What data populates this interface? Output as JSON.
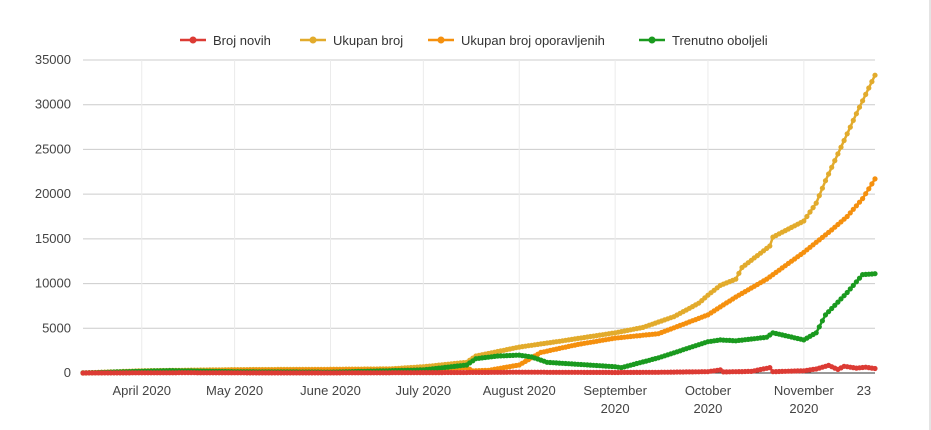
{
  "chart_data": {
    "type": "line",
    "title": "",
    "xlabel": "",
    "ylabel": "",
    "ylim": [
      0,
      35000
    ],
    "y_ticks": [
      "0",
      "5000",
      "10000",
      "15000",
      "20000",
      "25000",
      "30000",
      "35000"
    ],
    "x_range": [
      "2020-03-13",
      "2020-11-24"
    ],
    "x_ticks": [
      {
        "date": "2020-04-01",
        "lines": [
          "April 2020"
        ]
      },
      {
        "date": "2020-05-01",
        "lines": [
          "May 2020"
        ]
      },
      {
        "date": "2020-06-01",
        "lines": [
          "June 2020"
        ]
      },
      {
        "date": "2020-07-01",
        "lines": [
          "July 2020"
        ]
      },
      {
        "date": "2020-08-01",
        "lines": [
          "August 2020"
        ]
      },
      {
        "date": "2020-09-01",
        "lines": [
          "September",
          "2020"
        ]
      },
      {
        "date": "2020-10-01",
        "lines": [
          "October",
          "2020"
        ]
      },
      {
        "date": "2020-11-01",
        "lines": [
          "November",
          "2020"
        ]
      },
      {
        "date": "2020-11-23",
        "lines": [
          "23"
        ]
      }
    ],
    "gridlines": true,
    "legend_position": "top",
    "series": [
      {
        "name": "Broj novih",
        "color": "#dc3b34",
        "points": [
          [
            "2020-03-13",
            5
          ],
          [
            "2020-04-15",
            30
          ],
          [
            "2020-05-15",
            10
          ],
          [
            "2020-06-15",
            20
          ],
          [
            "2020-07-15",
            60
          ],
          [
            "2020-08-01",
            90
          ],
          [
            "2020-08-15",
            80
          ],
          [
            "2020-09-01",
            60
          ],
          [
            "2020-09-15",
            80
          ],
          [
            "2020-10-01",
            150
          ],
          [
            "2020-10-05",
            350
          ],
          [
            "2020-10-06",
            120
          ],
          [
            "2020-10-15",
            180
          ],
          [
            "2020-10-21",
            600
          ],
          [
            "2020-10-22",
            150
          ],
          [
            "2020-11-01",
            250
          ],
          [
            "2020-11-05",
            450
          ],
          [
            "2020-11-09",
            850
          ],
          [
            "2020-11-12",
            400
          ],
          [
            "2020-11-14",
            750
          ],
          [
            "2020-11-18",
            550
          ],
          [
            "2020-11-21",
            650
          ],
          [
            "2020-11-24",
            500
          ]
        ]
      },
      {
        "name": "Ukupan broj",
        "color": "#e2ab2c",
        "points": [
          [
            "2020-03-13",
            10
          ],
          [
            "2020-04-01",
            250
          ],
          [
            "2020-05-01",
            380
          ],
          [
            "2020-06-01",
            420
          ],
          [
            "2020-06-20",
            460
          ],
          [
            "2020-07-01",
            700
          ],
          [
            "2020-07-15",
            1200
          ],
          [
            "2020-07-18",
            1900
          ],
          [
            "2020-08-01",
            2900
          ],
          [
            "2020-08-15",
            3600
          ],
          [
            "2020-09-01",
            4500
          ],
          [
            "2020-09-10",
            5100
          ],
          [
            "2020-09-20",
            6300
          ],
          [
            "2020-09-28",
            7800
          ],
          [
            "2020-10-01",
            8700
          ],
          [
            "2020-10-05",
            9800
          ],
          [
            "2020-10-10",
            10500
          ],
          [
            "2020-10-12",
            11800
          ],
          [
            "2020-10-21",
            14200
          ],
          [
            "2020-10-22",
            15200
          ],
          [
            "2020-11-01",
            17000
          ],
          [
            "2020-11-05",
            19000
          ],
          [
            "2020-11-08",
            21500
          ],
          [
            "2020-11-12",
            24500
          ],
          [
            "2020-11-18",
            29000
          ],
          [
            "2020-11-24",
            33300
          ]
        ]
      },
      {
        "name": "Ukupan broj oporavljenih",
        "color": "#f5900e",
        "points": [
          [
            "2020-03-13",
            0
          ],
          [
            "2020-04-01",
            80
          ],
          [
            "2020-05-01",
            280
          ],
          [
            "2020-06-01",
            340
          ],
          [
            "2020-07-01",
            380
          ],
          [
            "2020-07-15",
            600
          ],
          [
            "2020-07-17",
            250
          ],
          [
            "2020-07-22",
            300
          ],
          [
            "2020-08-01",
            900
          ],
          [
            "2020-08-08",
            2300
          ],
          [
            "2020-08-20",
            3200
          ],
          [
            "2020-09-01",
            3900
          ],
          [
            "2020-09-15",
            4400
          ],
          [
            "2020-10-01",
            6500
          ],
          [
            "2020-10-10",
            8500
          ],
          [
            "2020-10-20",
            10500
          ],
          [
            "2020-11-01",
            13500
          ],
          [
            "2020-11-10",
            16000
          ],
          [
            "2020-11-15",
            17500
          ],
          [
            "2020-11-20",
            19500
          ],
          [
            "2020-11-24",
            21700
          ]
        ]
      },
      {
        "name": "Trenutno oboljeli",
        "color": "#1a9a1f",
        "points": [
          [
            "2020-03-13",
            10
          ],
          [
            "2020-04-01",
            200
          ],
          [
            "2020-04-10",
            270
          ],
          [
            "2020-05-01",
            150
          ],
          [
            "2020-06-01",
            100
          ],
          [
            "2020-07-01",
            350
          ],
          [
            "2020-07-15",
            900
          ],
          [
            "2020-07-18",
            1600
          ],
          [
            "2020-07-25",
            1900
          ],
          [
            "2020-08-01",
            2000
          ],
          [
            "2020-08-05",
            1800
          ],
          [
            "2020-08-10",
            1200
          ],
          [
            "2020-09-01",
            700
          ],
          [
            "2020-09-03",
            600
          ],
          [
            "2020-09-15",
            1700
          ],
          [
            "2020-10-01",
            3500
          ],
          [
            "2020-10-05",
            3700
          ],
          [
            "2020-10-10",
            3600
          ],
          [
            "2020-10-20",
            4000
          ],
          [
            "2020-10-22",
            4500
          ],
          [
            "2020-11-01",
            3700
          ],
          [
            "2020-11-05",
            4500
          ],
          [
            "2020-11-08",
            6500
          ],
          [
            "2020-11-15",
            9000
          ],
          [
            "2020-11-20",
            11000
          ],
          [
            "2020-11-24",
            11100
          ]
        ]
      }
    ]
  }
}
